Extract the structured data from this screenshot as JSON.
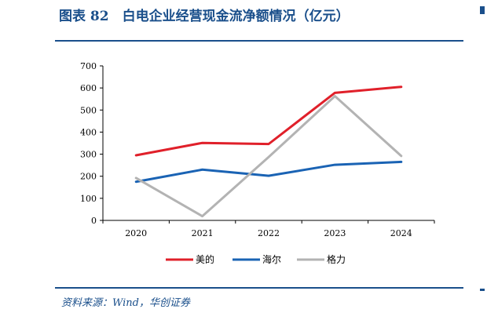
{
  "title": "图表 82　白电企业经营现金流净额情况（亿元）",
  "source": "资料来源：Wind，华创证券",
  "chart_data": {
    "type": "line",
    "title": "",
    "xlabel": "",
    "ylabel": "",
    "categories": [
      "2020",
      "2021",
      "2022",
      "2023",
      "2024"
    ],
    "ylim": [
      0,
      700
    ],
    "yticks": [
      0,
      100,
      200,
      300,
      400,
      500,
      600,
      700
    ],
    "grid": false,
    "legend_position": "bottom",
    "series": [
      {
        "name": "美的",
        "color": "#e0202a",
        "values": [
          295,
          351,
          346,
          578,
          605
        ]
      },
      {
        "name": "海尔",
        "color": "#1a63b4",
        "values": [
          175,
          230,
          202,
          252,
          265
        ]
      },
      {
        "name": "格力",
        "color": "#b3b3b3",
        "values": [
          192,
          19,
          287,
          563,
          292
        ]
      }
    ]
  }
}
